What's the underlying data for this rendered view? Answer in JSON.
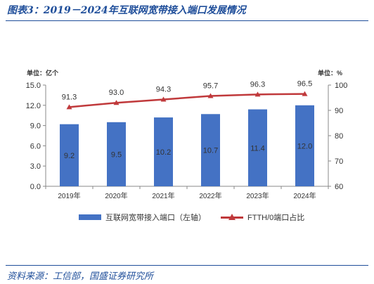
{
  "header": {
    "title": "图表3：2019－2024年互联网宽带接入端口发展情况"
  },
  "footer": {
    "source": "资料来源：工信部，国盛证券研究所"
  },
  "chart_data": {
    "type": "bar",
    "categories": [
      "2019年",
      "2020年",
      "2021年",
      "2022年",
      "2023年",
      "2024年"
    ],
    "series": [
      {
        "name": "互联网宽带接入端口（左轴）",
        "type": "bar",
        "axis": "left",
        "values": [
          9.2,
          9.5,
          10.2,
          10.7,
          11.4,
          12.0
        ],
        "labels": [
          "9.2",
          "9.5",
          "10.2",
          "10.7",
          "11.4",
          "12.0"
        ],
        "color": "#4472c4"
      },
      {
        "name": "FTTH/0端口占比",
        "type": "line",
        "axis": "right",
        "values": [
          91.3,
          93.0,
          94.3,
          95.7,
          96.3,
          96.5
        ],
        "labels": [
          "91.3",
          "93.0",
          "94.3",
          "95.7",
          "96.3",
          "96.5"
        ],
        "color": "#c0393b"
      }
    ],
    "left_axis": {
      "unit_label": "单位：亿个",
      "ylim": [
        0,
        15
      ],
      "ticks": [
        "0.0",
        "3.0",
        "6.0",
        "9.0",
        "12.0",
        "15.0"
      ]
    },
    "right_axis": {
      "unit_label": "单位：%",
      "ylim": [
        60,
        100
      ],
      "ticks": [
        "60",
        "70",
        "80",
        "90",
        "100"
      ]
    },
    "grid": false,
    "legend_position": "bottom"
  }
}
